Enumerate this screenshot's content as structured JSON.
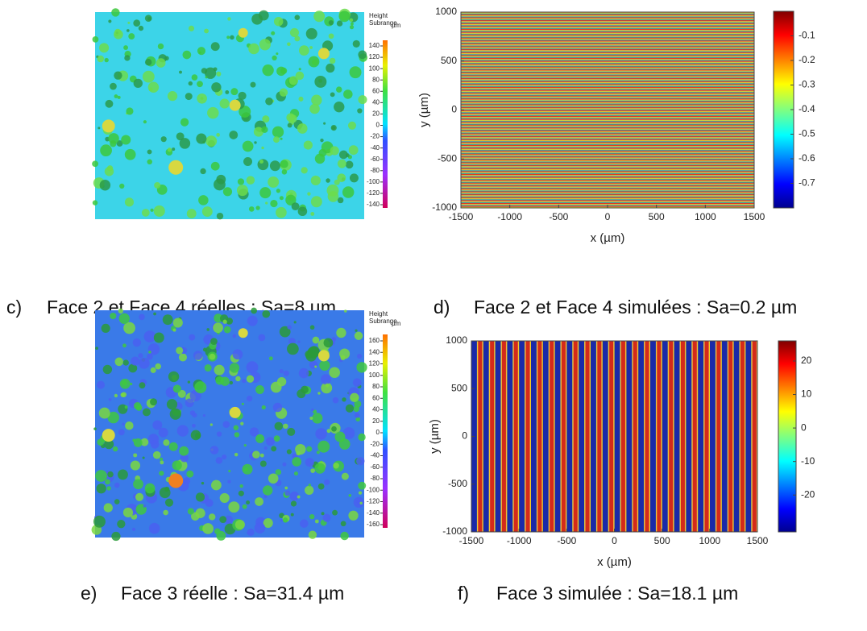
{
  "panels": [
    {
      "kind": "surface",
      "letter": "c)",
      "caption": "Face 2 et Face 4 réelles : Sa=8 µm",
      "legend_title": "Height",
      "legend_subtitle": "Subrange",
      "legend_unit": "µm",
      "colorbar_ticks": [
        140,
        120,
        100,
        80,
        60,
        40,
        20,
        0,
        -20,
        -40,
        -60,
        -80,
        -100,
        -120,
        -140
      ]
    },
    {
      "kind": "heatmap",
      "letter": "d)",
      "caption": "Face 2 et Face 4 simulées : Sa=0.2 µm",
      "xlabel": "x (µm)",
      "ylabel": "y (µm)",
      "stripes": "horizontal",
      "xlim": [
        -1500,
        1500
      ],
      "xticks": [
        -1500,
        -1000,
        -500,
        0,
        500,
        1000,
        1500
      ],
      "ylim": [
        -1000,
        1000
      ],
      "yticks": [
        -1000,
        -500,
        0,
        500,
        1000
      ],
      "clim": [
        -0.8,
        0
      ],
      "colorbar_ticks": [
        -0.1,
        -0.2,
        -0.3,
        -0.4,
        -0.5,
        -0.6,
        -0.7
      ]
    },
    {
      "kind": "surface",
      "letter": "e)",
      "caption": "Face 3 réelle : Sa=31.4 µm",
      "legend_title": "Height",
      "legend_subtitle": "Subrange",
      "legend_unit": "µm",
      "colorbar_ticks": [
        160,
        140,
        120,
        100,
        80,
        60,
        40,
        20,
        0,
        -20,
        -40,
        -60,
        -80,
        -100,
        -120,
        -140,
        -160
      ]
    },
    {
      "kind": "heatmap",
      "letter": "f)",
      "caption": "Face 3 simulée : Sa=18.1 µm",
      "xlabel": "x (µm)",
      "ylabel": "y (µm)",
      "stripes": "vertical",
      "xlim": [
        -1500,
        1500
      ],
      "xticks": [
        -1500,
        -1000,
        -500,
        0,
        500,
        1000,
        1500
      ],
      "ylim": [
        -1000,
        1000
      ],
      "yticks": [
        -1000,
        -500,
        0,
        500,
        1000
      ],
      "clim": [
        -31,
        26
      ],
      "colorbar_ticks": [
        20,
        10,
        0,
        -10,
        -20
      ]
    }
  ]
}
